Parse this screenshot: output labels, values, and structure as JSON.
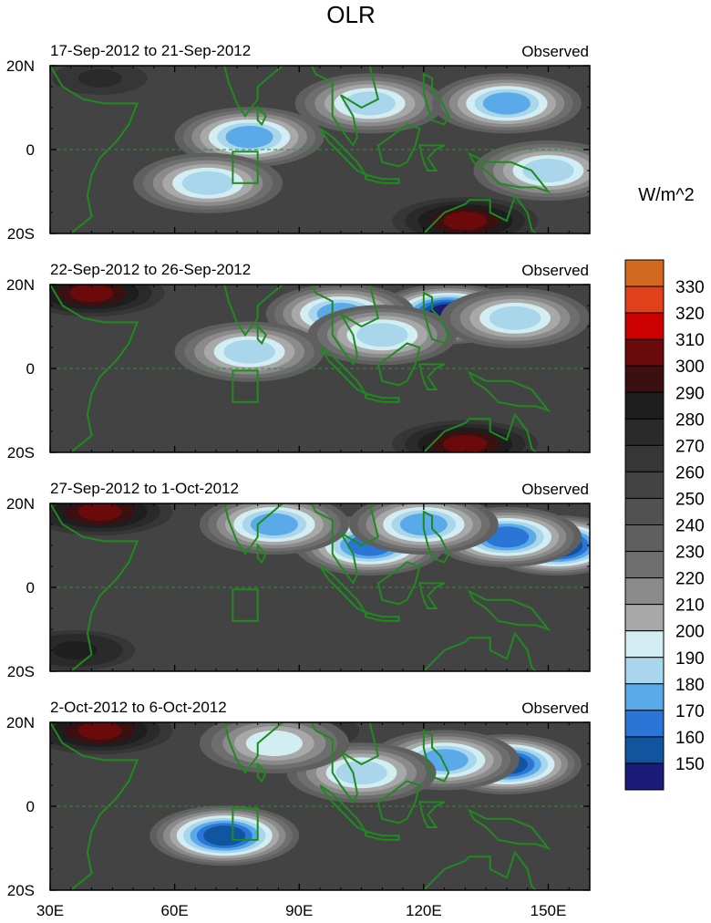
{
  "chart_data": {
    "type": "heatmap",
    "title": "OLR",
    "units_label": "W/m^2",
    "variable": "Outgoing Longwave Radiation",
    "x_ticks": [
      "30E",
      "60E",
      "90E",
      "120E",
      "150E"
    ],
    "x_range": [
      30,
      160
    ],
    "y_range": [
      -20,
      20
    ],
    "panels": [
      {
        "date_range": "17-Sep-2012 to 21-Sep-2012",
        "label": "Observed",
        "y_ticks": [
          "20N",
          "0",
          "20S"
        ],
        "minima": [
          {
            "lon": 107,
            "lat": 11,
            "value": 185
          },
          {
            "lon": 78,
            "lat": 3,
            "value": 175
          },
          {
            "lon": 140,
            "lat": 11,
            "value": 175
          },
          {
            "lon": 150,
            "lat": -5,
            "value": 190
          },
          {
            "lon": 68,
            "lat": -8,
            "value": 190
          }
        ],
        "maxima": [
          {
            "lon": 130,
            "lat": -17,
            "value": 305
          },
          {
            "lon": 42,
            "lat": 17,
            "value": 270
          }
        ]
      },
      {
        "date_range": "22-Sep-2012 to 26-Sep-2012",
        "label": "Observed",
        "y_ticks": [
          "20N",
          "0",
          "20S"
        ],
        "minima": [
          {
            "lon": 126,
            "lat": 13,
            "value": 150
          },
          {
            "lon": 100,
            "lat": 13,
            "value": 175
          },
          {
            "lon": 110,
            "lat": 8,
            "value": 185
          },
          {
            "lon": 78,
            "lat": 4,
            "value": 190
          },
          {
            "lon": 142,
            "lat": 12,
            "value": 190
          }
        ],
        "maxima": [
          {
            "lon": 40,
            "lat": 18,
            "value": 305
          },
          {
            "lon": 130,
            "lat": -18,
            "value": 300
          }
        ]
      },
      {
        "date_range": "27-Sep-2012 to 1-Oct-2012",
        "label": "Observed",
        "y_ticks": [
          "20N",
          "0",
          "20S"
        ],
        "minima": [
          {
            "lon": 152,
            "lat": 10,
            "value": 150
          },
          {
            "lon": 140,
            "lat": 12,
            "value": 165
          },
          {
            "lon": 107,
            "lat": 10,
            "value": 170
          },
          {
            "lon": 120,
            "lat": 15,
            "value": 175
          },
          {
            "lon": 84,
            "lat": 15,
            "value": 175
          }
        ],
        "maxima": [
          {
            "lon": 42,
            "lat": 18,
            "value": 300
          },
          {
            "lon": 36,
            "lat": -15,
            "value": 285
          }
        ]
      },
      {
        "date_range": "2-Oct-2012 to 6-Oct-2012",
        "label": "Observed",
        "y_ticks": [
          "20N",
          "0",
          "20S"
        ],
        "minima": [
          {
            "lon": 72,
            "lat": -7,
            "value": 160
          },
          {
            "lon": 140,
            "lat": 10,
            "value": 155
          },
          {
            "lon": 125,
            "lat": 11,
            "value": 180
          },
          {
            "lon": 105,
            "lat": 8,
            "value": 190
          },
          {
            "lon": 84,
            "lat": 15,
            "value": 200
          }
        ],
        "maxima": [
          {
            "lon": 42,
            "lat": 18,
            "value": 305
          },
          {
            "lon": 90,
            "lat": 18,
            "value": 280
          }
        ]
      }
    ],
    "levels": [
      {
        "label": "330",
        "color": "#d2691e"
      },
      {
        "label": "320",
        "color": "#e0401a"
      },
      {
        "label": "310",
        "color": "#cc0000"
      },
      {
        "label": "300",
        "color": "#6b0a0a"
      },
      {
        "label": "290",
        "color": "#3a1010"
      },
      {
        "label": "280",
        "color": "#1e1e1e"
      },
      {
        "label": "270",
        "color": "#2a2a2a"
      },
      {
        "label": "260",
        "color": "#363636"
      },
      {
        "label": "250",
        "color": "#434343"
      },
      {
        "label": "240",
        "color": "#515151"
      },
      {
        "label": "230",
        "color": "#5f5f5f"
      },
      {
        "label": "220",
        "color": "#6e6e6e"
      },
      {
        "label": "210",
        "color": "#8a8a8a"
      },
      {
        "label": "200",
        "color": "#a8a8a8"
      },
      {
        "label": "190",
        "color": "#d2eef2"
      },
      {
        "label": "180",
        "color": "#a9d6ea"
      },
      {
        "label": "170",
        "color": "#5aaaea"
      },
      {
        "label": "160",
        "color": "#2a75d6"
      },
      {
        "label": "150",
        "color": "#11559e"
      },
      {
        "label": "",
        "color": "#1a1a78"
      }
    ]
  }
}
